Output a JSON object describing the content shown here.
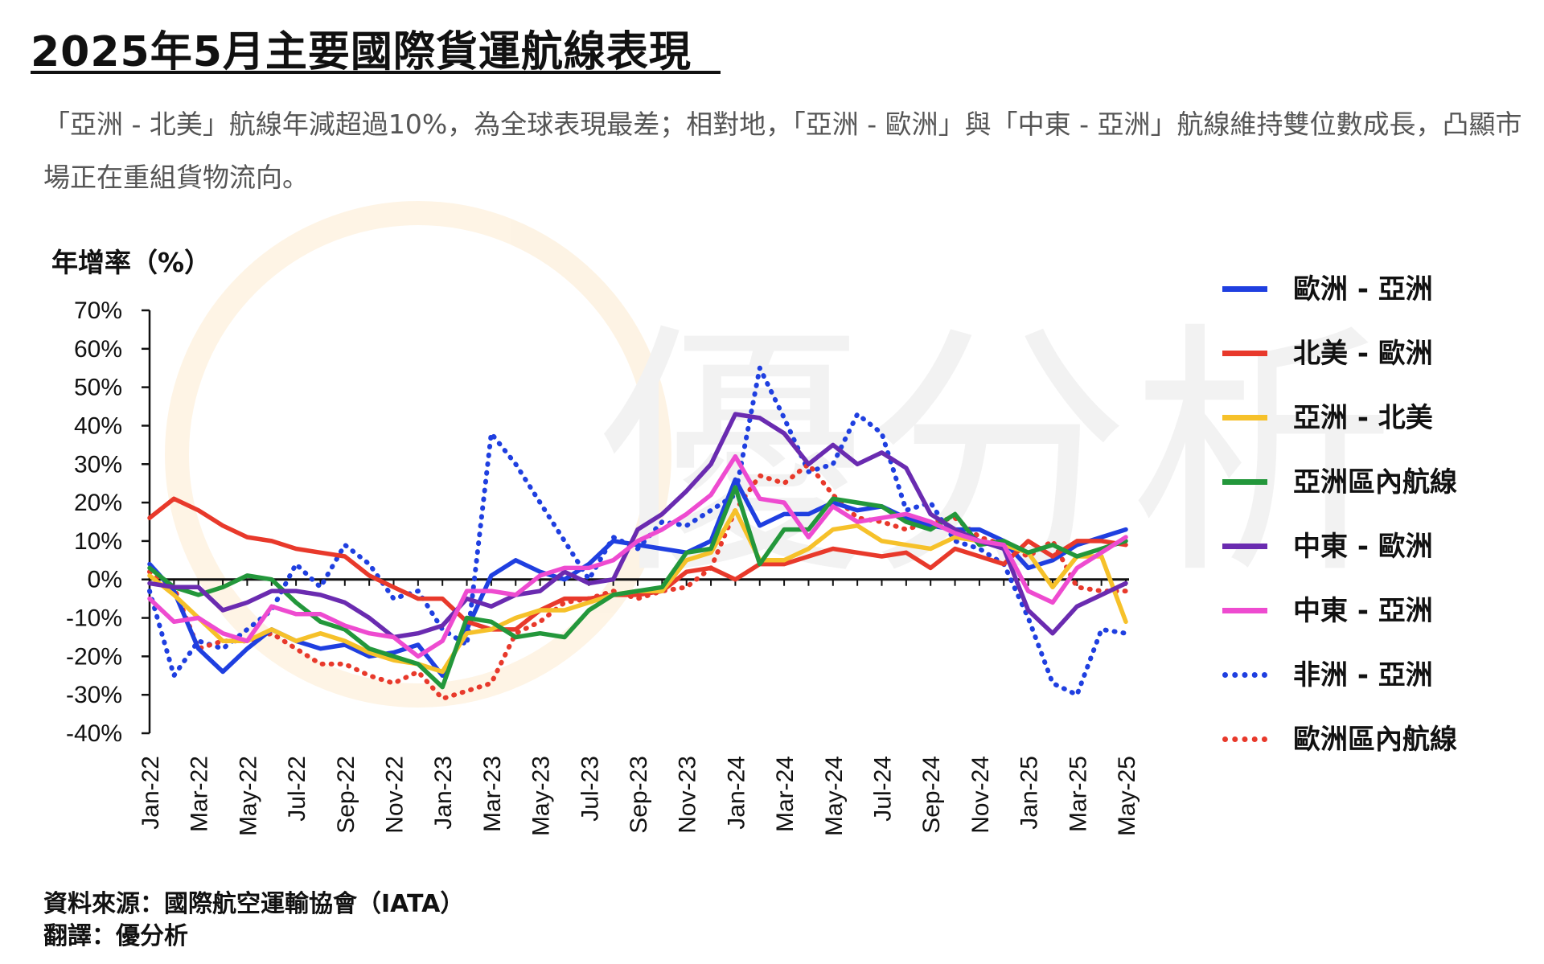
{
  "page": {
    "title": "2025年5月主要國際貨運航線表現",
    "subtitle": "「亞洲 - 北美」航線年減超過10%，為全球表現最差；相對地，「亞洲 - 歐洲」與「中東 - 亞洲」航線維持雙位數成長，凸顯市場正在重組貨物流向。",
    "source": "資料來源：國際航空運輸協會（IATA）",
    "translator": "翻譯：優分析",
    "watermark": "優分析"
  },
  "chart_data": {
    "type": "line",
    "title": "2025年5月主要國際貨運航線表現",
    "ylabel": "年增率（%）",
    "xlabel": "",
    "ylim": [
      -40,
      70
    ],
    "yticks": [
      70,
      60,
      50,
      40,
      30,
      20,
      10,
      0,
      -10,
      -20,
      -30,
      -40
    ],
    "ytick_labels": [
      "70%",
      "60%",
      "50%",
      "40%",
      "30%",
      "20%",
      "10%",
      "0%",
      "-10%",
      "-20%",
      "-30%",
      "-40%"
    ],
    "x": [
      "Jan-22",
      "Feb-22",
      "Mar-22",
      "Apr-22",
      "May-22",
      "Jun-22",
      "Jul-22",
      "Aug-22",
      "Sep-22",
      "Oct-22",
      "Nov-22",
      "Dec-22",
      "Jan-23",
      "Feb-23",
      "Mar-23",
      "Apr-23",
      "May-23",
      "Jun-23",
      "Jul-23",
      "Aug-23",
      "Sep-23",
      "Oct-23",
      "Nov-23",
      "Dec-23",
      "Jan-24",
      "Feb-24",
      "Mar-24",
      "Apr-24",
      "May-24",
      "Jun-24",
      "Jul-24",
      "Aug-24",
      "Sep-24",
      "Oct-24",
      "Nov-24",
      "Dec-24",
      "Jan-25",
      "Feb-25",
      "Mar-25",
      "Apr-25",
      "May-25"
    ],
    "xtick_labels": [
      "Jan-22",
      "Mar-22",
      "May-22",
      "Jul-22",
      "Sep-22",
      "Nov-22",
      "Jan-23",
      "Mar-23",
      "May-23",
      "Jul-23",
      "Sep-23",
      "Nov-23",
      "Jan-24",
      "Mar-24",
      "May-24",
      "Jul-24",
      "Sep-24",
      "Nov-24",
      "Jan-25",
      "Mar-25",
      "May-25"
    ],
    "legend_position": "right",
    "series": [
      {
        "name": "歐洲 - 亞洲",
        "color": "#1f3fe0",
        "style": "solid",
        "values": [
          4,
          -3,
          -18,
          -24,
          -18,
          -13,
          -16,
          -18,
          -17,
          -20,
          -19,
          -17,
          -25,
          -13,
          1,
          5,
          2,
          0,
          4,
          10,
          9,
          8,
          7,
          10,
          26,
          14,
          17,
          17,
          20,
          18,
          19,
          16,
          14,
          13,
          13,
          10,
          3,
          5,
          9,
          11,
          13
        ]
      },
      {
        "name": "北美 - 歐洲",
        "color": "#e8392b",
        "style": "solid",
        "values": [
          16,
          21,
          18,
          14,
          11,
          10,
          8,
          7,
          6,
          1,
          -2,
          -5,
          -5,
          -11,
          -13,
          -13,
          -8,
          -5,
          -5,
          -4,
          -4,
          -3,
          2,
          3,
          0,
          4,
          4,
          6,
          8,
          7,
          6,
          7,
          3,
          8,
          6,
          4,
          10,
          6,
          10,
          10,
          9
        ]
      },
      {
        "name": "亞洲 - 北美",
        "color": "#f6c12a",
        "style": "solid",
        "values": [
          1,
          -4,
          -10,
          -16,
          -16,
          -13,
          -16,
          -14,
          -16,
          -19,
          -21,
          -22,
          -24,
          -14,
          -13,
          -10,
          -8,
          -8,
          -6,
          -4,
          -3,
          -3,
          5,
          7,
          18,
          5,
          5,
          8,
          13,
          14,
          10,
          9,
          8,
          11,
          10,
          9,
          7,
          -2,
          6,
          6,
          -11
        ]
      },
      {
        "name": "亞洲區內航線",
        "color": "#23973b",
        "style": "solid",
        "values": [
          3,
          -2,
          -4,
          -2,
          1,
          0,
          -6,
          -11,
          -13,
          -18,
          -20,
          -22,
          -28,
          -10,
          -11,
          -15,
          -14,
          -15,
          -8,
          -4,
          -3,
          -2,
          7,
          8,
          24,
          4,
          13,
          13,
          21,
          20,
          19,
          15,
          13,
          17,
          9,
          10,
          7,
          9,
          6,
          8,
          10
        ]
      },
      {
        "name": "中東 - 歐洲",
        "color": "#6a2bb0",
        "style": "solid",
        "values": [
          -1,
          -2,
          -2,
          -8,
          -6,
          -3,
          -3,
          -4,
          -6,
          -10,
          -15,
          -14,
          -12,
          -5,
          -7,
          -4,
          -3,
          2,
          -1,
          0,
          13,
          17,
          23,
          30,
          43,
          42,
          38,
          30,
          35,
          30,
          33,
          29,
          17,
          13,
          10,
          8,
          -8,
          -14,
          -7,
          -4,
          -1
        ]
      },
      {
        "name": "中東 - 亞洲",
        "color": "#ee4bd0",
        "style": "solid",
        "values": [
          -5,
          -11,
          -10,
          -14,
          -16,
          -7,
          -9,
          -9,
          -12,
          -14,
          -15,
          -20,
          -16,
          -3,
          -3,
          -4,
          1,
          3,
          3,
          5,
          10,
          13,
          17,
          22,
          32,
          21,
          20,
          11,
          19,
          15,
          16,
          17,
          15,
          12,
          10,
          9,
          -3,
          -6,
          3,
          7,
          11
        ]
      },
      {
        "name": "非洲 - 亞洲",
        "color": "#1f3fe0",
        "style": "dotted",
        "values": [
          -3,
          -25,
          -16,
          -18,
          -13,
          -8,
          4,
          -2,
          9,
          4,
          -5,
          -3,
          -13,
          -17,
          38,
          30,
          20,
          10,
          0,
          11,
          8,
          15,
          14,
          18,
          22,
          55,
          42,
          28,
          30,
          43,
          38,
          18,
          20,
          10,
          8,
          4,
          -10,
          -27,
          -30,
          -13,
          -14
        ]
      },
      {
        "name": "歐洲區內航線",
        "color": "#e8392b",
        "style": "dotted",
        "values": [
          2,
          -2,
          -18,
          -16,
          -16,
          -14,
          -18,
          -22,
          -22,
          -25,
          -27,
          -24,
          -31,
          -29,
          -27,
          -14,
          -11,
          -6,
          -5,
          -3,
          -5,
          -3,
          -2,
          3,
          18,
          27,
          25,
          30,
          22,
          16,
          15,
          13,
          15,
          16,
          11,
          9,
          6,
          10,
          -2,
          -3,
          -3
        ]
      }
    ]
  }
}
